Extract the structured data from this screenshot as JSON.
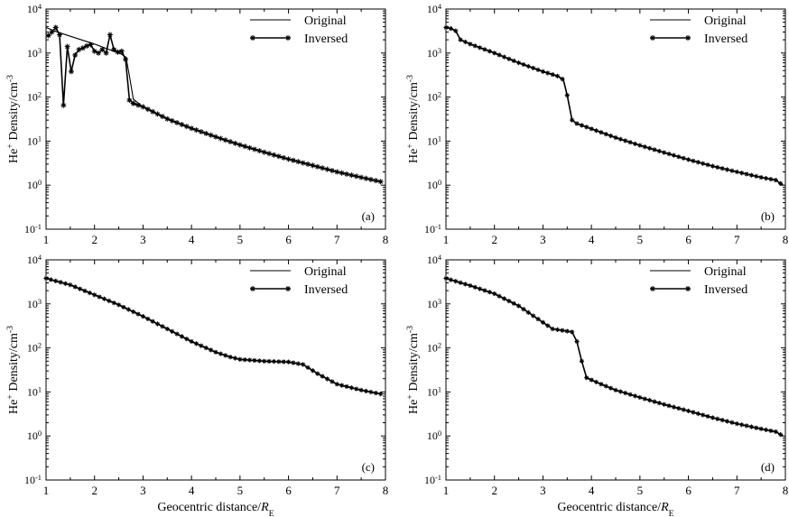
{
  "chart_data": [
    {
      "type": "line",
      "panel_label": "(a)",
      "xlabel": "",
      "ylabel": "He⁺ Density/cm⁻³",
      "xlim": [
        1,
        8
      ],
      "ylim": [
        0.1,
        10000
      ],
      "yscale": "log",
      "xticks": [
        1,
        2,
        3,
        4,
        5,
        6,
        7,
        8
      ],
      "yticks": [
        "10⁻¹",
        "10⁰",
        "10¹",
        "10²",
        "10³",
        "10⁴"
      ],
      "legend": {
        "position": "top-right",
        "entries": [
          "Original",
          "Inversed"
        ]
      },
      "series": [
        {
          "name": "Original",
          "x": [
            1.0,
            1.2,
            1.5,
            2.0,
            2.3,
            2.55,
            2.65,
            2.72,
            2.8,
            3.0,
            3.5,
            4.0,
            4.5,
            5.0,
            5.5,
            6.0,
            6.5,
            7.0,
            7.5,
            7.9
          ],
          "y": [
            3800,
            3100,
            2400,
            1600,
            1200,
            950,
            800,
            300,
            90,
            60,
            32,
            19.5,
            12.5,
            8.2,
            5.6,
            3.9,
            2.8,
            2.0,
            1.5,
            1.2
          ]
        },
        {
          "name": "Inversed",
          "x": [
            1.05,
            1.12,
            1.2,
            1.28,
            1.36,
            1.44,
            1.52,
            1.6,
            1.68,
            1.76,
            1.84,
            1.92,
            2.0,
            2.08,
            2.16,
            2.24,
            2.32,
            2.4,
            2.48,
            2.56,
            2.64,
            2.72,
            2.8,
            3.0,
            3.5,
            4.0,
            4.5,
            5.0,
            5.5,
            6.0,
            6.5,
            7.0,
            7.5,
            7.9
          ],
          "y": [
            2500,
            3000,
            3800,
            2600,
            65,
            1400,
            380,
            900,
            1200,
            1300,
            1450,
            1550,
            1100,
            1000,
            1200,
            1000,
            2600,
            1200,
            1050,
            1100,
            720,
            85,
            72,
            60,
            32,
            19.5,
            12.5,
            8.2,
            5.6,
            3.9,
            2.8,
            2.0,
            1.5,
            1.2
          ]
        }
      ]
    },
    {
      "type": "line",
      "panel_label": "(b)",
      "xlabel": "",
      "ylabel": "He⁺ Density/cm⁻³",
      "xlim": [
        1,
        8
      ],
      "ylim": [
        0.1,
        10000
      ],
      "yscale": "log",
      "xticks": [
        1,
        2,
        3,
        4,
        5,
        6,
        7,
        8
      ],
      "yticks": [
        "10⁻¹",
        "10⁰",
        "10¹",
        "10²",
        "10³",
        "10⁴"
      ],
      "legend": {
        "position": "top-right",
        "entries": [
          "Original",
          "Inversed"
        ]
      },
      "series": [
        {
          "name": "Original",
          "x": [
            1.0,
            1.1,
            1.2,
            1.3,
            1.5,
            2.0,
            2.5,
            3.0,
            3.3,
            3.42,
            3.5,
            3.6,
            3.7,
            4.0,
            4.5,
            5.0,
            5.5,
            6.0,
            6.5,
            7.0,
            7.5,
            7.8,
            7.95
          ],
          "y": [
            3800,
            3600,
            3200,
            2000,
            1600,
            1000,
            600,
            380,
            300,
            250,
            110,
            30,
            25,
            19,
            12,
            8.0,
            5.5,
            3.8,
            2.7,
            2.0,
            1.5,
            1.3,
            1.0
          ]
        },
        {
          "name": "Inversed",
          "x": [
            1.0,
            1.1,
            1.2,
            1.3,
            1.5,
            2.0,
            2.5,
            3.0,
            3.3,
            3.42,
            3.5,
            3.6,
            3.7,
            4.0,
            4.5,
            5.0,
            5.5,
            6.0,
            6.5,
            7.0,
            7.5,
            7.8,
            7.95
          ],
          "y": [
            3800,
            3600,
            3200,
            2000,
            1600,
            1000,
            600,
            380,
            300,
            250,
            110,
            30,
            25,
            19,
            12,
            8.0,
            5.5,
            3.8,
            2.7,
            2.0,
            1.5,
            1.3,
            1.0
          ]
        }
      ]
    },
    {
      "type": "line",
      "panel_label": "(c)",
      "xlabel": "Geocentric distance/R_E",
      "ylabel": "He⁺ Density/cm⁻³",
      "xlim": [
        1,
        8
      ],
      "ylim": [
        0.1,
        10000
      ],
      "yscale": "log",
      "xticks": [
        1,
        2,
        3,
        4,
        5,
        6,
        7,
        8
      ],
      "yticks": [
        "10⁻¹",
        "10⁰",
        "10¹",
        "10²",
        "10³",
        "10⁴"
      ],
      "legend": {
        "position": "top-right",
        "entries": [
          "Original",
          "Inversed"
        ]
      },
      "series": [
        {
          "name": "Original",
          "x": [
            1.0,
            1.5,
            2.0,
            2.5,
            3.0,
            3.5,
            4.0,
            4.5,
            4.8,
            5.0,
            5.5,
            6.0,
            6.3,
            6.6,
            7.0,
            7.5,
            7.9
          ],
          "y": [
            3800,
            2700,
            1600,
            950,
            520,
            270,
            140,
            80,
            62,
            55,
            50,
            48,
            42,
            26,
            15,
            11,
            9
          ]
        },
        {
          "name": "Inversed",
          "x": [
            1.0,
            1.5,
            2.0,
            2.5,
            3.0,
            3.5,
            4.0,
            4.5,
            4.8,
            5.0,
            5.5,
            6.0,
            6.3,
            6.6,
            7.0,
            7.5,
            7.9
          ],
          "y": [
            3800,
            2700,
            1600,
            950,
            520,
            270,
            140,
            80,
            62,
            55,
            50,
            48,
            42,
            26,
            15,
            11,
            9
          ]
        }
      ]
    },
    {
      "type": "line",
      "panel_label": "(d)",
      "xlabel": "Geocentric distance/R_E",
      "ylabel": "He⁺ Density/cm⁻³",
      "xlim": [
        1,
        8
      ],
      "ylim": [
        0.1,
        10000
      ],
      "yscale": "log",
      "xticks": [
        1,
        2,
        3,
        4,
        5,
        6,
        7,
        8
      ],
      "yticks": [
        "10⁻¹",
        "10⁰",
        "10¹",
        "10²",
        "10³",
        "10⁴"
      ],
      "legend": {
        "position": "top-right",
        "entries": [
          "Original",
          "Inversed"
        ]
      },
      "series": [
        {
          "name": "Original",
          "x": [
            1.0,
            1.5,
            2.0,
            2.5,
            3.0,
            3.2,
            3.4,
            3.6,
            3.7,
            3.8,
            3.9,
            4.2,
            4.5,
            5.0,
            5.5,
            6.0,
            6.5,
            7.0,
            7.5,
            7.8,
            7.95
          ],
          "y": [
            3800,
            2600,
            1700,
            900,
            380,
            270,
            250,
            230,
            140,
            50,
            21,
            15,
            11,
            7.5,
            5.2,
            3.7,
            2.6,
            1.9,
            1.45,
            1.25,
            1.0
          ]
        },
        {
          "name": "Inversed",
          "x": [
            1.0,
            1.5,
            2.0,
            2.5,
            3.0,
            3.2,
            3.4,
            3.6,
            3.7,
            3.8,
            3.9,
            4.2,
            4.5,
            5.0,
            5.5,
            6.0,
            6.5,
            7.0,
            7.5,
            7.8,
            7.95
          ],
          "y": [
            3800,
            2600,
            1700,
            900,
            380,
            270,
            250,
            230,
            140,
            50,
            21,
            15,
            11,
            7.5,
            5.2,
            3.7,
            2.6,
            1.9,
            1.45,
            1.25,
            1.0
          ]
        }
      ]
    }
  ]
}
